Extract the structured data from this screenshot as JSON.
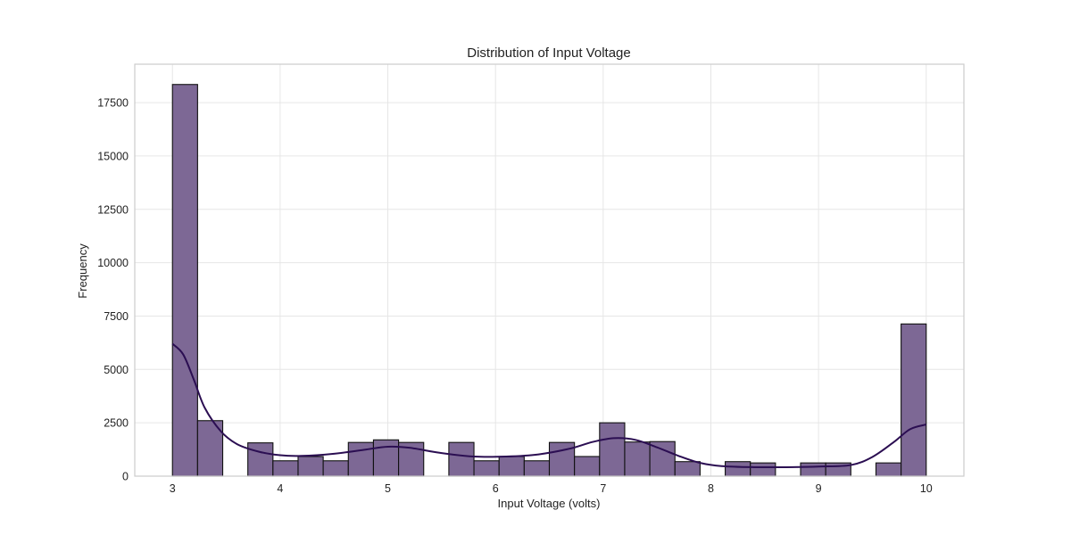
{
  "chart_data": {
    "type": "bar",
    "title": "Distribution of Input Voltage",
    "xlabel": "Input Voltage (volts)",
    "ylabel": "Frequency",
    "xlim": [
      2.65,
      10.35
    ],
    "ylim": [
      0,
      19300
    ],
    "x_ticks": [
      3,
      4,
      5,
      6,
      7,
      8,
      9,
      10
    ],
    "x_tick_labels": [
      "3",
      "4",
      "5",
      "6",
      "7",
      "8",
      "9",
      "10"
    ],
    "y_ticks": [
      0,
      2500,
      5000,
      7500,
      10000,
      12500,
      15000,
      17500
    ],
    "y_tick_labels": [
      "0",
      "2500",
      "5000",
      "7500",
      "10000",
      "12500",
      "15000",
      "17500"
    ],
    "grid": true,
    "bins": {
      "edges": [
        3.0,
        3.2333,
        3.4667,
        3.7,
        3.9333,
        4.1667,
        4.4,
        4.6333,
        4.8667,
        5.1,
        5.3333,
        5.5667,
        5.8,
        6.0333,
        6.2667,
        6.5,
        6.7333,
        6.9667,
        7.2,
        7.4333,
        7.6667,
        7.9,
        8.1333,
        8.3667,
        8.6,
        8.8333,
        9.0667,
        9.3,
        9.5333,
        9.7667,
        10.0
      ],
      "counts": [
        18350,
        2600,
        0,
        1560,
        720,
        920,
        720,
        1580,
        1700,
        1580,
        0,
        1580,
        720,
        920,
        720,
        1580,
        920,
        2500,
        1600,
        1620,
        680,
        0,
        680,
        620,
        0,
        620,
        620,
        0,
        620,
        7130
      ]
    },
    "kde": {
      "x": [
        3.0,
        3.1,
        3.2,
        3.3,
        3.45,
        3.6,
        3.8,
        4.0,
        4.2,
        4.5,
        4.8,
        5.0,
        5.2,
        5.5,
        5.8,
        6.1,
        6.4,
        6.7,
        6.9,
        7.1,
        7.3,
        7.5,
        7.7,
        7.9,
        8.1,
        8.4,
        8.7,
        9.0,
        9.3,
        9.5,
        9.7,
        9.85,
        10.0
      ],
      "y": [
        6200,
        5700,
        4500,
        3200,
        2100,
        1500,
        1150,
        980,
        950,
        1050,
        1250,
        1380,
        1330,
        1080,
        920,
        920,
        1020,
        1300,
        1600,
        1780,
        1700,
        1350,
        950,
        620,
        470,
        420,
        420,
        450,
        520,
        900,
        1600,
        2200,
        2420
      ]
    },
    "colors": {
      "bar_fill": "#7d6895",
      "bar_edge": "#111111",
      "kde_line": "#2b0e52",
      "grid": "#e6e6e6",
      "frame": "#cccccc"
    }
  }
}
